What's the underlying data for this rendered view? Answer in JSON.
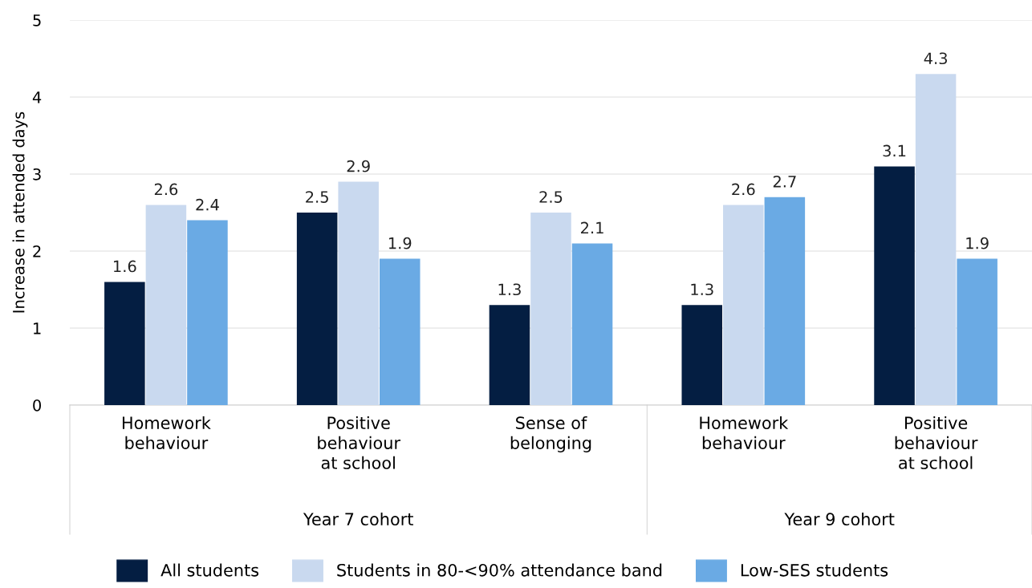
{
  "chart_data": {
    "type": "bar",
    "ylabel": "Increase in attended days",
    "categories": [
      "Homework\nbehaviour",
      "Positive\nbehaviour\nat school",
      "Sense of\nbelonging",
      "Homework\nbehaviour",
      "Positive\nbehaviour\nat school"
    ],
    "series": [
      {
        "name": "All students",
        "color": "#041e42",
        "values": [
          1.6,
          2.5,
          1.3,
          1.3,
          3.1
        ]
      },
      {
        "name": "Students in 80-<90% attendance band",
        "color": "#c9d9ef",
        "values": [
          2.6,
          2.9,
          2.5,
          2.6,
          4.3
        ]
      },
      {
        "name": "Low-SES students",
        "color": "#6aaae4",
        "values": [
          2.4,
          1.9,
          2.1,
          2.7,
          1.9
        ]
      }
    ],
    "annotations": [
      "Year 7 cohort",
      "Year 9 cohort"
    ],
    "ylim": [
      0,
      5
    ],
    "yticks": [
      0,
      1,
      2,
      3,
      4,
      5
    ],
    "grid": "y",
    "legend": "bottom",
    "data_labels": true
  }
}
